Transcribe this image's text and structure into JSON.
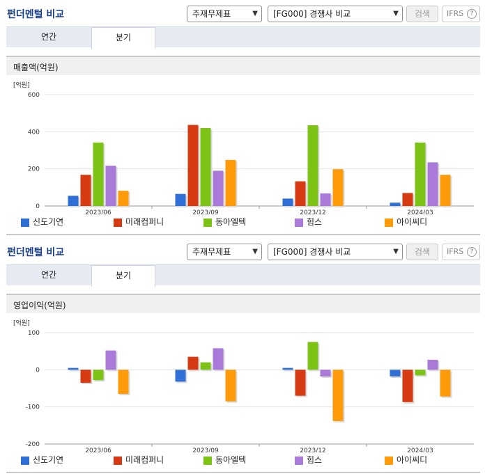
{
  "panels": [
    {
      "title": "펀더멘털 비교",
      "select1": "주재무제표",
      "select2": "[FG000] 경쟁사 비교",
      "search_label": "검색",
      "ifrs_label": "IFRS",
      "help_label": "?",
      "tabs": [
        {
          "label": "연간"
        },
        {
          "label": "분기"
        }
      ],
      "active_tab": 1,
      "subtitle": "매출액(억원)"
    },
    {
      "title": "펀더멘털 비교",
      "select1": "주재무제표",
      "select2": "[FG000] 경쟁사 비교",
      "search_label": "검색",
      "ifrs_label": "IFRS",
      "help_label": "?",
      "tabs": [
        {
          "label": "연간"
        },
        {
          "label": "분기"
        }
      ],
      "active_tab": 1,
      "subtitle": "영업이익(억원)"
    }
  ],
  "chart_data": [
    {
      "type": "bar",
      "unit_label": "[억원]",
      "categories": [
        "2023/06",
        "2023/09",
        "2023/12",
        "2024/03"
      ],
      "ylim": [
        0,
        600
      ],
      "yticks": [
        0,
        200,
        400,
        600
      ],
      "grid": true,
      "legend_position": "bottom",
      "series": [
        {
          "name": "신도기연",
          "color": "#2f6fd6",
          "values": [
            55,
            65,
            40,
            18
          ]
        },
        {
          "name": "미래컴퍼니",
          "color": "#d63a12",
          "values": [
            168,
            437,
            133,
            70
          ]
        },
        {
          "name": "동아엘텍",
          "color": "#7cc316",
          "values": [
            342,
            420,
            435,
            342
          ]
        },
        {
          "name": "힘스",
          "color": "#a97ad8",
          "values": [
            217,
            190,
            68,
            235
          ]
        },
        {
          "name": "아이씨디",
          "color": "#ff9a0a",
          "values": [
            82,
            248,
            198,
            168
          ]
        }
      ]
    },
    {
      "type": "bar",
      "unit_label": "[억원]",
      "categories": [
        "2023/06",
        "2023/09",
        "2023/12",
        "2024/03"
      ],
      "ylim": [
        -200,
        100
      ],
      "yticks": [
        -200,
        -100,
        0,
        100
      ],
      "grid": true,
      "legend_position": "bottom",
      "series": [
        {
          "name": "신도기연",
          "color": "#2f6fd6",
          "values": [
            5,
            -32,
            5,
            -18
          ]
        },
        {
          "name": "미래컴퍼니",
          "color": "#d63a12",
          "values": [
            -35,
            35,
            -70,
            -87
          ]
        },
        {
          "name": "동아엘텍",
          "color": "#7cc316",
          "values": [
            -28,
            20,
            75,
            -15
          ]
        },
        {
          "name": "힘스",
          "color": "#a97ad8",
          "values": [
            52,
            58,
            -18,
            27
          ]
        },
        {
          "name": "아이씨디",
          "color": "#ff9a0a",
          "values": [
            -65,
            -85,
            -138,
            -72
          ]
        }
      ]
    }
  ]
}
